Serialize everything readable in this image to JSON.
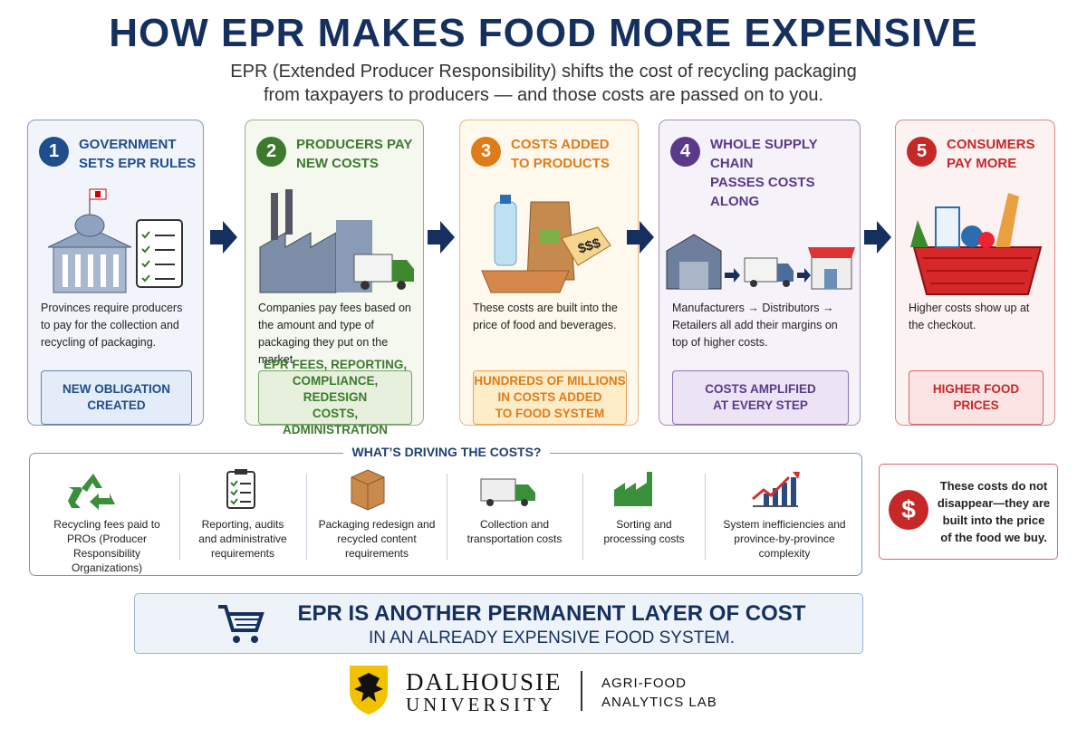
{
  "header": {
    "title": "HOW EPR MAKES FOOD MORE EXPENSIVE",
    "subtitle": [
      "EPR (Extended Producer Responsibility) shifts the cost of recycling packaging",
      "from taxpayers to producers — and those costs are passed on to you."
    ]
  },
  "steps": [
    {
      "number": "1",
      "title": [
        "GOVERNMENT",
        "SETS EPR RULES"
      ],
      "description": "Provinces require producers to pay for the collection and recycling of packaging.",
      "tag": [
        "NEW OBLIGATION",
        "CREATED"
      ]
    },
    {
      "number": "2",
      "title": [
        "PRODUCERS PAY",
        "NEW COSTS"
      ],
      "description": "Companies pay fees based on the amount and type of packaging they put on the market.",
      "tag": [
        "EPR FEES, REPORTING,",
        "COMPLIANCE, REDESIGN",
        "COSTS, ADMINISTRATION"
      ]
    },
    {
      "number": "3",
      "title": [
        "COSTS ADDED",
        "TO PRODUCTS"
      ],
      "description": "These costs are built into the price of food and beverages.",
      "tag": [
        "HUNDREDS OF MILLIONS",
        "IN COSTS ADDED",
        "TO FOOD SYSTEM"
      ],
      "price_tag": "$$$"
    },
    {
      "number": "4",
      "title": [
        "WHOLE SUPPLY CHAIN",
        "PASSES COSTS ALONG"
      ],
      "description": "Manufacturers → Distributors → Retailers all add their margins on top of higher costs.",
      "tag": [
        "COSTS AMPLIFIED",
        "AT EVERY STEP"
      ]
    },
    {
      "number": "5",
      "title": [
        "CONSUMERS",
        "PAY MORE"
      ],
      "description": "Higher costs show up at the checkout.",
      "tag": [
        "HIGHER FOOD",
        "PRICES"
      ]
    }
  ],
  "drivers": {
    "title": "WHAT’S DRIVING THE COSTS?",
    "items": [
      "Recycling fees paid to PROs (Producer Responsibility Organizations)",
      "Reporting, audits and administrative requirements",
      "Packaging redesign and recycled content requirements",
      "Collection and transportation costs",
      "Sorting and processing costs",
      "System inefficiencies and province-by-province complexity"
    ]
  },
  "note": {
    "icon": "$",
    "text": "These costs do not disappear—they are built into the price of the food we buy."
  },
  "banner": {
    "line1": "EPR IS ANOTHER PERMANENT LAYER OF COST",
    "line2": "IN AN ALREADY EXPENSIVE FOOD SYSTEM."
  },
  "footer": {
    "university": [
      "DALHOUSIE",
      "UNIVERSITY"
    ],
    "lab": [
      "AGRI-FOOD",
      "ANALYTICS LAB"
    ]
  }
}
